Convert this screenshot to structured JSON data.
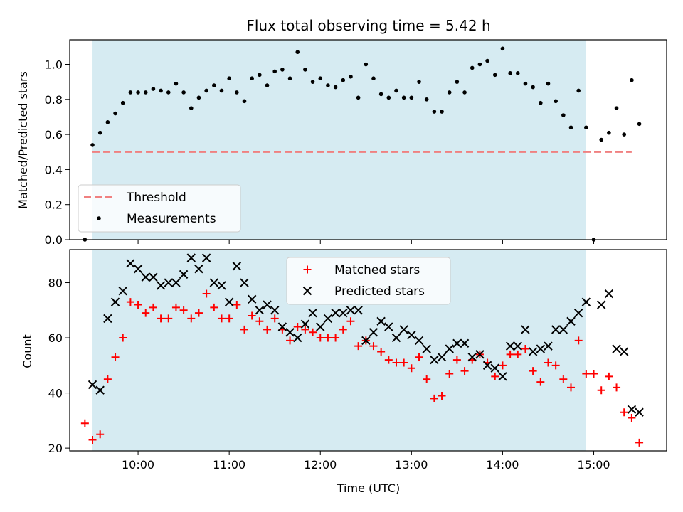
{
  "chart_data": [
    {
      "type": "scatter",
      "title": "Flux total observing time = 5.42 h",
      "xlabel": "",
      "ylabel": "Matched/Predicted stars",
      "xlim": [
        "09:15",
        "15:48"
      ],
      "ylim": [
        0,
        1.14
      ],
      "yticks": [
        0.0,
        0.2,
        0.4,
        0.6,
        0.8,
        1.0
      ],
      "yticklabels": [
        "0.0",
        "0.2",
        "0.4",
        "0.6",
        "0.8",
        "1.0"
      ],
      "grid": false,
      "legend": "lower-left",
      "shaded_span": {
        "start": "09:30",
        "end": "14:55",
        "color": "#add8e6"
      },
      "threshold": {
        "name": "Threshold",
        "y": 0.5,
        "x": [
          "09:30",
          "15:25"
        ],
        "color": "#f08080"
      },
      "series": [
        {
          "name": "Measurements",
          "color": "#000000",
          "marker": "dot",
          "points": [
            [
              "09:25",
              0.0
            ],
            [
              "09:30",
              0.54
            ],
            [
              "09:35",
              0.61
            ],
            [
              "09:40",
              0.67
            ],
            [
              "09:45",
              0.72
            ],
            [
              "09:50",
              0.78
            ],
            [
              "09:55",
              0.84
            ],
            [
              "10:00",
              0.84
            ],
            [
              "10:05",
              0.84
            ],
            [
              "10:10",
              0.86
            ],
            [
              "10:15",
              0.85
            ],
            [
              "10:20",
              0.84
            ],
            [
              "10:25",
              0.89
            ],
            [
              "10:30",
              0.84
            ],
            [
              "10:35",
              0.75
            ],
            [
              "10:40",
              0.81
            ],
            [
              "10:45",
              0.85
            ],
            [
              "10:50",
              0.88
            ],
            [
              "10:55",
              0.85
            ],
            [
              "11:00",
              0.92
            ],
            [
              "11:05",
              0.84
            ],
            [
              "11:10",
              0.79
            ],
            [
              "11:15",
              0.92
            ],
            [
              "11:20",
              0.94
            ],
            [
              "11:25",
              0.88
            ],
            [
              "11:30",
              0.96
            ],
            [
              "11:35",
              0.97
            ],
            [
              "11:40",
              0.92
            ],
            [
              "11:45",
              1.07
            ],
            [
              "11:50",
              0.97
            ],
            [
              "11:55",
              0.9
            ],
            [
              "12:00",
              0.92
            ],
            [
              "12:05",
              0.88
            ],
            [
              "12:10",
              0.87
            ],
            [
              "12:15",
              0.91
            ],
            [
              "12:20",
              0.93
            ],
            [
              "12:25",
              0.81
            ],
            [
              "12:30",
              1.0
            ],
            [
              "12:35",
              0.92
            ],
            [
              "12:40",
              0.83
            ],
            [
              "12:45",
              0.81
            ],
            [
              "12:50",
              0.85
            ],
            [
              "12:55",
              0.81
            ],
            [
              "13:00",
              0.81
            ],
            [
              "13:05",
              0.9
            ],
            [
              "13:10",
              0.8
            ],
            [
              "13:15",
              0.73
            ],
            [
              "13:20",
              0.73
            ],
            [
              "13:25",
              0.84
            ],
            [
              "13:30",
              0.9
            ],
            [
              "13:35",
              0.84
            ],
            [
              "13:40",
              0.98
            ],
            [
              "13:45",
              1.0
            ],
            [
              "13:50",
              1.02
            ],
            [
              "13:55",
              0.94
            ],
            [
              "14:00",
              1.09
            ],
            [
              "14:05",
              0.95
            ],
            [
              "14:10",
              0.95
            ],
            [
              "14:15",
              0.89
            ],
            [
              "14:20",
              0.87
            ],
            [
              "14:25",
              0.78
            ],
            [
              "14:30",
              0.89
            ],
            [
              "14:35",
              0.79
            ],
            [
              "14:40",
              0.71
            ],
            [
              "14:45",
              0.64
            ],
            [
              "14:50",
              0.85
            ],
            [
              "14:55",
              0.64
            ],
            [
              "15:00",
              0.0
            ],
            [
              "15:05",
              0.57
            ],
            [
              "15:10",
              0.61
            ],
            [
              "15:15",
              0.75
            ],
            [
              "15:20",
              0.6
            ],
            [
              "15:25",
              0.91
            ],
            [
              "15:30",
              0.66
            ]
          ]
        }
      ]
    },
    {
      "type": "scatter",
      "title": "",
      "xlabel": "Time (UTC)",
      "ylabel": "Count",
      "xlim": [
        "09:15",
        "15:48"
      ],
      "ylim": [
        19,
        92
      ],
      "yticks": [
        20,
        40,
        60,
        80
      ],
      "yticklabels": [
        "20",
        "40",
        "60",
        "80"
      ],
      "xticks": [
        "10:00",
        "11:00",
        "12:00",
        "13:00",
        "14:00",
        "15:00"
      ],
      "xticklabels": [
        "10:00",
        "11:00",
        "12:00",
        "13:00",
        "14:00",
        "15:00"
      ],
      "grid": false,
      "legend": "top-center",
      "shaded_span": {
        "start": "09:30",
        "end": "14:55",
        "color": "#add8e6"
      },
      "series": [
        {
          "name": "Matched stars",
          "color": "#ff0000",
          "marker": "plus",
          "points": [
            [
              "09:25",
              29
            ],
            [
              "09:30",
              23
            ],
            [
              "09:35",
              25
            ],
            [
              "09:40",
              45
            ],
            [
              "09:45",
              53
            ],
            [
              "09:50",
              60
            ],
            [
              "09:55",
              73
            ],
            [
              "10:00",
              72
            ],
            [
              "10:05",
              69
            ],
            [
              "10:10",
              71
            ],
            [
              "10:15",
              67
            ],
            [
              "10:20",
              67
            ],
            [
              "10:25",
              71
            ],
            [
              "10:30",
              70
            ],
            [
              "10:35",
              67
            ],
            [
              "10:40",
              69
            ],
            [
              "10:45",
              76
            ],
            [
              "10:50",
              71
            ],
            [
              "10:55",
              67
            ],
            [
              "11:00",
              67
            ],
            [
              "11:05",
              72
            ],
            [
              "11:10",
              63
            ],
            [
              "11:15",
              68
            ],
            [
              "11:20",
              66
            ],
            [
              "11:25",
              63
            ],
            [
              "11:30",
              67
            ],
            [
              "11:35",
              63
            ],
            [
              "11:40",
              59
            ],
            [
              "11:45",
              64
            ],
            [
              "11:50",
              63
            ],
            [
              "11:55",
              62
            ],
            [
              "12:00",
              60
            ],
            [
              "12:05",
              60
            ],
            [
              "12:10",
              60
            ],
            [
              "12:15",
              63
            ],
            [
              "12:20",
              66
            ],
            [
              "12:25",
              57
            ],
            [
              "12:30",
              59
            ],
            [
              "12:35",
              57
            ],
            [
              "12:40",
              55
            ],
            [
              "12:45",
              52
            ],
            [
              "12:50",
              51
            ],
            [
              "12:55",
              51
            ],
            [
              "13:00",
              49
            ],
            [
              "13:05",
              53
            ],
            [
              "13:10",
              45
            ],
            [
              "13:15",
              38
            ],
            [
              "13:20",
              39
            ],
            [
              "13:25",
              47
            ],
            [
              "13:30",
              52
            ],
            [
              "13:35",
              48
            ],
            [
              "13:40",
              52
            ],
            [
              "13:45",
              54
            ],
            [
              "13:50",
              51
            ],
            [
              "13:55",
              46
            ],
            [
              "14:00",
              50
            ],
            [
              "14:05",
              54
            ],
            [
              "14:10",
              54
            ],
            [
              "14:15",
              56
            ],
            [
              "14:20",
              48
            ],
            [
              "14:25",
              44
            ],
            [
              "14:30",
              51
            ],
            [
              "14:35",
              50
            ],
            [
              "14:40",
              45
            ],
            [
              "14:45",
              42
            ],
            [
              "14:50",
              59
            ],
            [
              "14:55",
              47
            ],
            [
              "15:00",
              47
            ],
            [
              "15:05",
              41
            ],
            [
              "15:10",
              46
            ],
            [
              "15:15",
              42
            ],
            [
              "15:20",
              33
            ],
            [
              "15:25",
              31
            ],
            [
              "15:30",
              22
            ]
          ]
        },
        {
          "name": "Predicted stars",
          "color": "#000000",
          "marker": "x",
          "points": [
            [
              "09:30",
              43
            ],
            [
              "09:35",
              41
            ],
            [
              "09:40",
              67
            ],
            [
              "09:45",
              73
            ],
            [
              "09:50",
              77
            ],
            [
              "09:55",
              87
            ],
            [
              "10:00",
              85
            ],
            [
              "10:05",
              82
            ],
            [
              "10:10",
              82
            ],
            [
              "10:15",
              79
            ],
            [
              "10:20",
              80
            ],
            [
              "10:25",
              80
            ],
            [
              "10:30",
              83
            ],
            [
              "10:35",
              89
            ],
            [
              "10:40",
              85
            ],
            [
              "10:45",
              89
            ],
            [
              "10:50",
              80
            ],
            [
              "10:55",
              79
            ],
            [
              "11:00",
              73
            ],
            [
              "11:05",
              86
            ],
            [
              "11:10",
              80
            ],
            [
              "11:15",
              74
            ],
            [
              "11:20",
              70
            ],
            [
              "11:25",
              72
            ],
            [
              "11:30",
              70
            ],
            [
              "11:35",
              64
            ],
            [
              "11:40",
              62
            ],
            [
              "11:45",
              60
            ],
            [
              "11:50",
              65
            ],
            [
              "11:55",
              69
            ],
            [
              "12:00",
              64
            ],
            [
              "12:05",
              67
            ],
            [
              "12:10",
              69
            ],
            [
              "12:15",
              69
            ],
            [
              "12:20",
              70
            ],
            [
              "12:25",
              70
            ],
            [
              "12:30",
              59
            ],
            [
              "12:35",
              62
            ],
            [
              "12:40",
              66
            ],
            [
              "12:45",
              64
            ],
            [
              "12:50",
              60
            ],
            [
              "12:55",
              63
            ],
            [
              "13:00",
              61
            ],
            [
              "13:05",
              59
            ],
            [
              "13:10",
              56
            ],
            [
              "13:15",
              52
            ],
            [
              "13:20",
              53
            ],
            [
              "13:25",
              56
            ],
            [
              "13:30",
              58
            ],
            [
              "13:35",
              58
            ],
            [
              "13:40",
              53
            ],
            [
              "13:45",
              54
            ],
            [
              "13:50",
              50
            ],
            [
              "13:55",
              49
            ],
            [
              "14:00",
              46
            ],
            [
              "14:05",
              57
            ],
            [
              "14:10",
              57
            ],
            [
              "14:15",
              63
            ],
            [
              "14:20",
              55
            ],
            [
              "14:25",
              56
            ],
            [
              "14:30",
              57
            ],
            [
              "14:35",
              63
            ],
            [
              "14:40",
              63
            ],
            [
              "14:45",
              66
            ],
            [
              "14:50",
              69
            ],
            [
              "14:55",
              73
            ],
            [
              "15:05",
              72
            ],
            [
              "15:10",
              76
            ],
            [
              "15:15",
              56
            ],
            [
              "15:20",
              55
            ],
            [
              "15:25",
              34
            ],
            [
              "15:30",
              33
            ]
          ]
        }
      ]
    }
  ]
}
